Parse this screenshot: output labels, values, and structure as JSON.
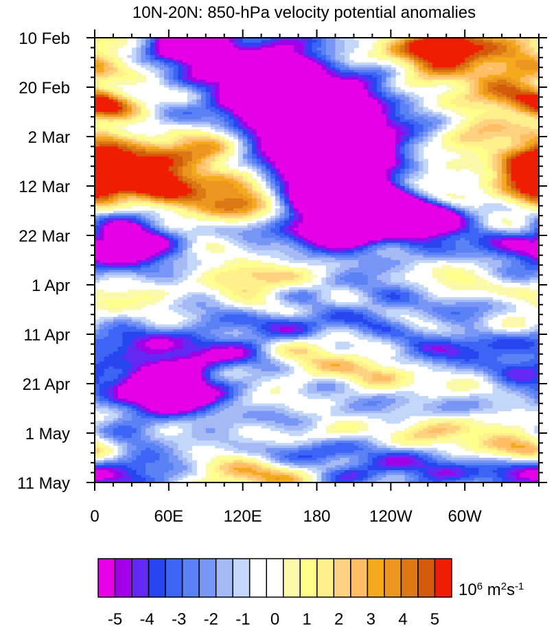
{
  "chart_data": {
    "type": "heatmap",
    "title": "10N-20N: 850-hPa velocity potential anomalies",
    "x_ticks": [
      "0",
      "60E",
      "120E",
      "180",
      "120W",
      "60W"
    ],
    "x_tick_values": [
      0,
      60,
      120,
      180,
      240,
      300
    ],
    "x_range": [
      0,
      360
    ],
    "y_ticks": [
      "10 Feb",
      "20 Feb",
      "2 Mar",
      "12 Mar",
      "22 Mar",
      "1 Apr",
      "11 Apr",
      "21 Apr",
      "1 May",
      "11 May"
    ],
    "y_tick_values": [
      "10 Feb",
      "20 Feb",
      "2 Mar",
      "12 Mar",
      "22 Mar",
      "1 Apr",
      "11 Apr",
      "21 Apr",
      "1 May",
      "11 May"
    ],
    "y_range": [
      "10 Feb",
      "11 May"
    ],
    "colorbar": {
      "levels": [
        -5.5,
        -5,
        -4.5,
        -4,
        -3.5,
        -3,
        -2.5,
        -2,
        -1.5,
        -1,
        -0.5,
        0,
        0.5,
        1,
        1.5,
        2,
        2.5,
        3,
        3.5,
        4,
        4.5,
        5,
        5.5
      ],
      "labels": [
        "-5",
        "-4",
        "-3",
        "-2",
        "-1",
        "0",
        "1",
        "2",
        "3",
        "4",
        "5"
      ],
      "label_values": [
        -5,
        -4,
        -3,
        -2,
        -1,
        0,
        1,
        2,
        3,
        4,
        5
      ],
      "colors": [
        "#e600e6",
        "#a000e6",
        "#6428f5",
        "#2846f0",
        "#3c64f5",
        "#5a82f5",
        "#7896f5",
        "#a5baf5",
        "#c3d7fa",
        "#ffffff",
        "#ffffff",
        "#fafaaa",
        "#ffff8c",
        "#fff08c",
        "#ffd282",
        "#ffbe64",
        "#f5aa1e",
        "#eb961e",
        "#dc7814",
        "#d25a0a",
        "#f01e00"
      ],
      "unit_base": "10",
      "unit_exp1": "6",
      "unit_mid": " m",
      "unit_exp2": "2",
      "unit_s": "s",
      "unit_exp3": "-1"
    },
    "features": [
      {
        "lon": 75,
        "day": 1.5,
        "value": -5.6,
        "dlon": 25,
        "dday": 2.5
      },
      {
        "lon": 95,
        "day": 4,
        "value": -3.5,
        "dlon": 35,
        "dday": 6
      },
      {
        "lon": 150,
        "day": 8,
        "value": -4.5,
        "dlon": 25,
        "dday": 5
      },
      {
        "lon": 170,
        "day": 13,
        "value": -5.2,
        "dlon": 35,
        "dday": 4
      },
      {
        "lon": 190,
        "day": 16,
        "value": -5.0,
        "dlon": 40,
        "dday": 4
      },
      {
        "lon": 200,
        "day": 23,
        "value": -5.5,
        "dlon": 30,
        "dday": 3
      },
      {
        "lon": 205,
        "day": 29,
        "value": -5.8,
        "dlon": 40,
        "dday": 6
      },
      {
        "lon": 230,
        "day": 36,
        "value": -3.8,
        "dlon": 50,
        "dday": 4
      },
      {
        "lon": 270,
        "day": 37,
        "value": -4.6,
        "dlon": 15,
        "dday": 2
      },
      {
        "lon": 160,
        "day": 22,
        "value": -3.6,
        "dlon": 60,
        "dday": 16
      },
      {
        "lon": 205,
        "day": 38,
        "value": -3.0,
        "dlon": 60,
        "dday": 6
      },
      {
        "lon": 25,
        "day": 40,
        "value": -4.2,
        "dlon": 20,
        "dday": 4
      },
      {
        "lon": 40,
        "day": 44,
        "value": -3.0,
        "dlon": 45,
        "dday": 6
      },
      {
        "lon": 330,
        "day": 44,
        "value": -3.0,
        "dlon": 40,
        "dday": 4
      },
      {
        "lon": 230,
        "day": 54,
        "value": -2.8,
        "dlon": 70,
        "dday": 4
      },
      {
        "lon": 100,
        "day": 62,
        "value": -2.8,
        "dlon": 60,
        "dday": 5
      },
      {
        "lon": 290,
        "day": 63,
        "value": -3.6,
        "dlon": 50,
        "dday": 3
      },
      {
        "lon": 60,
        "day": 71,
        "value": -6.0,
        "dlon": 25,
        "dday": 3
      },
      {
        "lon": 45,
        "day": 70,
        "value": -3.4,
        "dlon": 55,
        "dday": 7
      },
      {
        "lon": 230,
        "day": 75,
        "value": -2.6,
        "dlon": 60,
        "dday": 3
      },
      {
        "lon": 20,
        "day": 84,
        "value": -2.8,
        "dlon": 40,
        "dday": 4
      },
      {
        "lon": 200,
        "day": 84,
        "value": -3.2,
        "dlon": 60,
        "dday": 4
      },
      {
        "lon": 280,
        "day": 88,
        "value": -3.0,
        "dlon": 60,
        "dday": 3
      },
      {
        "lon": 30,
        "day": 89,
        "value": -2.6,
        "dlon": 50,
        "dday": 3
      },
      {
        "lon": 275,
        "day": 2.5,
        "value": 5.2,
        "dlon": 25,
        "dday": 2.5
      },
      {
        "lon": 320,
        "day": 3,
        "value": 2.8,
        "dlon": 45,
        "dday": 4
      },
      {
        "lon": 10,
        "day": 13,
        "value": 2.8,
        "dlon": 18,
        "dday": 3
      },
      {
        "lon": 330,
        "day": 12,
        "value": 2.6,
        "dlon": 30,
        "dday": 4
      },
      {
        "lon": 40,
        "day": 26,
        "value": 3.6,
        "dlon": 40,
        "dday": 4
      },
      {
        "lon": 100,
        "day": 23,
        "value": 3.8,
        "dlon": 25,
        "dday": 3
      },
      {
        "lon": 45,
        "day": 29,
        "value": 4.8,
        "dlon": 25,
        "dday": 2
      },
      {
        "lon": 5,
        "day": 28,
        "value": 4.0,
        "dlon": 15,
        "dday": 4
      },
      {
        "lon": 355,
        "day": 27,
        "value": 3.6,
        "dlon": 20,
        "dday": 5
      },
      {
        "lon": 130,
        "day": 34,
        "value": 4.8,
        "dlon": 30,
        "dday": 3
      },
      {
        "lon": 100,
        "day": 33,
        "value": 3.4,
        "dlon": 45,
        "dday": 4
      },
      {
        "lon": 260,
        "day": 28,
        "value": 2.4,
        "dlon": 40,
        "dday": 4
      },
      {
        "lon": 130,
        "day": 48,
        "value": 3.6,
        "dlon": 45,
        "dday": 4
      },
      {
        "lon": 300,
        "day": 48,
        "value": 2.2,
        "dlon": 40,
        "dday": 4
      },
      {
        "lon": 20,
        "day": 53,
        "value": 2.2,
        "dlon": 30,
        "dday": 3
      },
      {
        "lon": 200,
        "day": 66,
        "value": 2.2,
        "dlon": 50,
        "dday": 4
      },
      {
        "lon": 240,
        "day": 79,
        "value": 2.4,
        "dlon": 50,
        "dday": 3
      },
      {
        "lon": 330,
        "day": 82,
        "value": 2.8,
        "dlon": 40,
        "dday": 3
      },
      {
        "lon": 120,
        "day": 88,
        "value": 3.2,
        "dlon": 45,
        "dday": 3
      },
      {
        "lon": 0,
        "day": 83,
        "value": 2.0,
        "dlon": 20,
        "dday": 3
      }
    ]
  }
}
